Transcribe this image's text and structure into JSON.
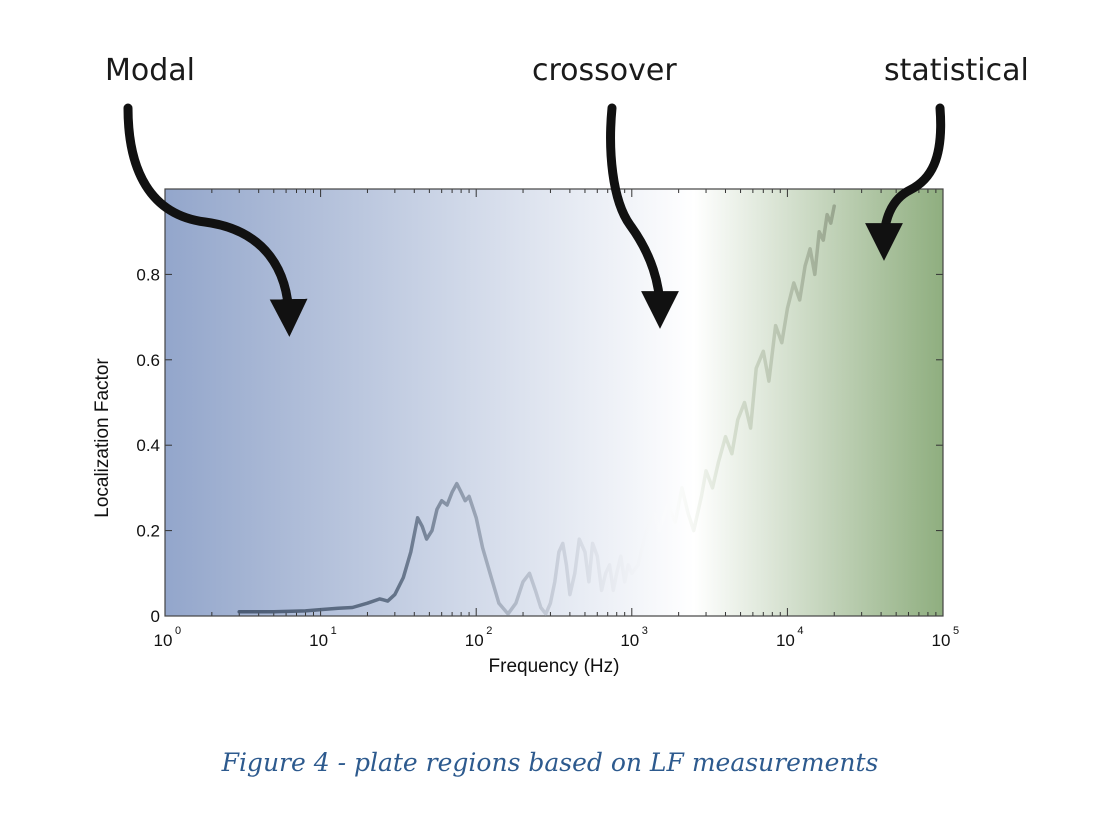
{
  "regions": {
    "modal": "Modal",
    "crossover": "crossover",
    "statistical": "statistical"
  },
  "caption": "Figure 4 - plate regions based on LF  measurements",
  "chart_data": {
    "type": "line",
    "xlabel": "Frequency (Hz)",
    "ylabel": "Localization Factor",
    "xscale": "log",
    "xlim": [
      1,
      100000
    ],
    "ylim": [
      0,
      1
    ],
    "x_ticks": [
      {
        "base": "10",
        "exp": "0",
        "value": 1
      },
      {
        "base": "10",
        "exp": "1",
        "value": 10
      },
      {
        "base": "10",
        "exp": "2",
        "value": 100
      },
      {
        "base": "10",
        "exp": "3",
        "value": 1000
      },
      {
        "base": "10",
        "exp": "4",
        "value": 10000
      },
      {
        "base": "10",
        "exp": "5",
        "value": 100000
      }
    ],
    "y_ticks": [
      {
        "label": "0",
        "value": 0
      },
      {
        "label": "0.2",
        "value": 0.2
      },
      {
        "label": "0.4",
        "value": 0.4
      },
      {
        "label": "0.6",
        "value": 0.6
      },
      {
        "label": "0.8",
        "value": 0.8
      }
    ],
    "background_gradient": [
      "#93a6cb",
      "#ffffff",
      "#8fae7f"
    ],
    "series": [
      {
        "color": "#4a5a6e",
        "x": [
          3,
          5,
          8,
          10,
          13,
          16,
          20,
          24,
          27,
          30,
          34,
          38,
          42,
          45,
          48,
          52,
          56,
          60,
          65,
          70,
          75,
          80,
          85,
          90,
          100,
          110,
          125,
          140,
          160,
          180,
          200,
          220,
          240,
          260,
          280,
          300,
          320,
          340,
          360,
          380,
          400,
          430,
          460,
          500,
          530,
          560,
          600,
          640,
          680,
          720,
          760,
          800,
          850,
          900,
          950,
          1000,
          1100,
          1200,
          1300,
          1400,
          1500,
          1700,
          1900,
          2100,
          2300,
          2500,
          2800,
          3000,
          3300,
          3600,
          4000,
          4400,
          4800,
          5300,
          5800,
          6300,
          7000,
          7600,
          8400,
          9200,
          10000,
          11000,
          12000,
          13000,
          14000,
          15000,
          16000,
          17000,
          18000,
          19000,
          20000
        ],
        "y": [
          0.01,
          0.01,
          0.012,
          0.015,
          0.018,
          0.02,
          0.03,
          0.04,
          0.035,
          0.05,
          0.09,
          0.15,
          0.23,
          0.21,
          0.18,
          0.2,
          0.25,
          0.27,
          0.26,
          0.29,
          0.31,
          0.29,
          0.27,
          0.28,
          0.23,
          0.16,
          0.09,
          0.03,
          0.005,
          0.03,
          0.08,
          0.1,
          0.06,
          0.02,
          0.005,
          0.03,
          0.08,
          0.15,
          0.17,
          0.12,
          0.05,
          0.1,
          0.18,
          0.15,
          0.08,
          0.17,
          0.14,
          0.06,
          0.1,
          0.12,
          0.06,
          0.1,
          0.14,
          0.08,
          0.12,
          0.1,
          0.12,
          0.18,
          0.22,
          0.24,
          0.2,
          0.26,
          0.22,
          0.3,
          0.24,
          0.2,
          0.28,
          0.34,
          0.3,
          0.36,
          0.42,
          0.38,
          0.46,
          0.5,
          0.44,
          0.58,
          0.62,
          0.55,
          0.68,
          0.64,
          0.72,
          0.78,
          0.74,
          0.82,
          0.86,
          0.8,
          0.9,
          0.88,
          0.94,
          0.92,
          0.96
        ]
      }
    ]
  }
}
